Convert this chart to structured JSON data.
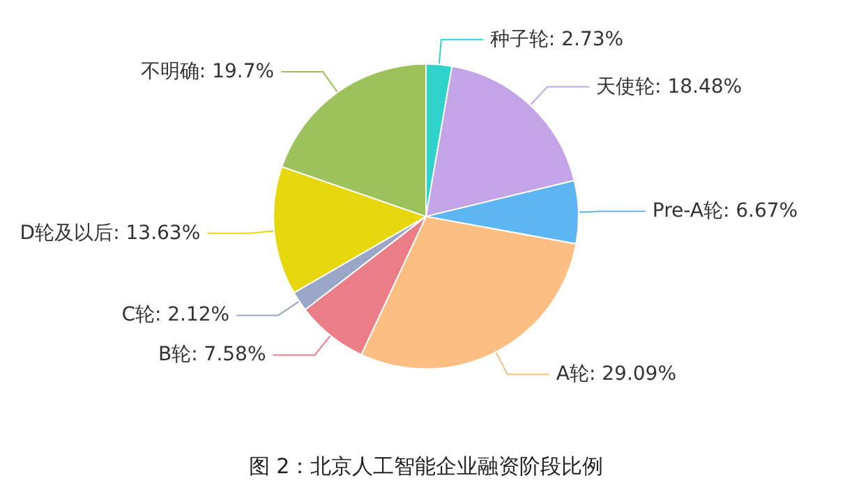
{
  "chart_data": {
    "type": "pie",
    "title": "图 2：北京人工智能企业融资阶段比例",
    "categories": [
      "种子轮",
      "天使轮",
      "Pre-A轮",
      "A轮",
      "B轮",
      "C轮",
      "D轮及以后",
      "不明确"
    ],
    "values": [
      2.73,
      18.48,
      6.67,
      29.09,
      7.58,
      2.12,
      13.63,
      19.7
    ],
    "value_labels": [
      "2.73%",
      "18.48%",
      "6.67%",
      "29.09%",
      "7.58%",
      "2.12%",
      "13.63%",
      "19.7%"
    ],
    "colors": [
      "#2fd3cb",
      "#c3a4e6",
      "#5db5f2",
      "#fdbe82",
      "#ea7d86",
      "#9aa6c8",
      "#e6d80c",
      "#9cc25c"
    ],
    "legend": false
  }
}
